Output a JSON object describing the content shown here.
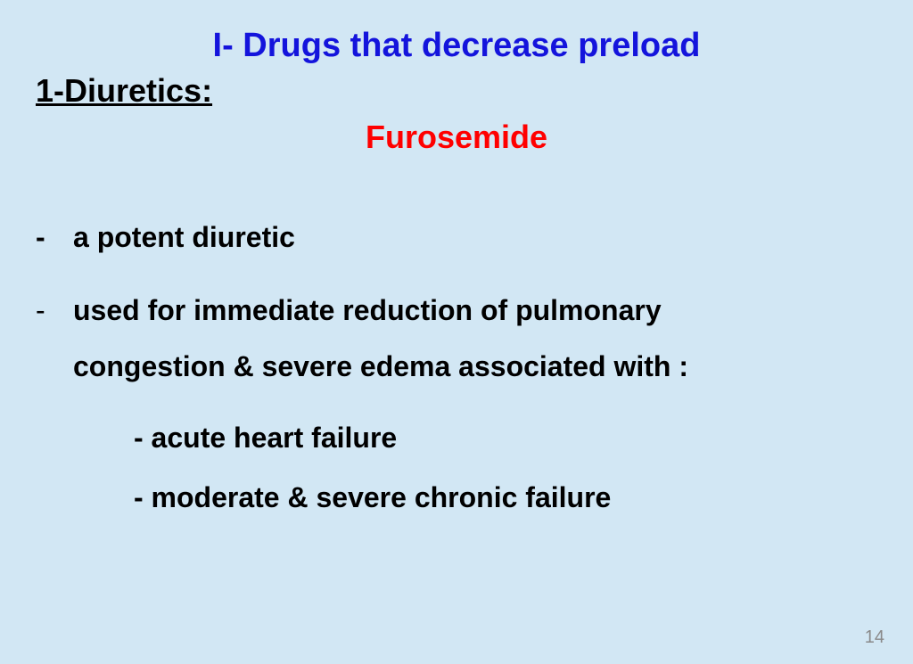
{
  "colors": {
    "background": "#d2e7f4",
    "title": "#1414dc",
    "section": "#000000",
    "drug": "#ff0000",
    "body": "#000000",
    "pagenum": "#8a8a8a"
  },
  "fonts": {
    "title_size": 38,
    "section_size": 36,
    "drug_size": 36,
    "body_size": 32,
    "pagenum_size": 20
  },
  "title": "I- Drugs  that  decrease preload",
  "section": "1-Diuretics:",
  "drug": "Furosemide",
  "bullets": {
    "b1": "a  potent diuretic",
    "b2_line1": "used for immediate reduction of pulmonary",
    "b2_line2": "congestion & severe edema associated with :",
    "sub1": "- acute heart failure",
    "sub2": "- moderate & severe chronic failure"
  },
  "pagenum": "14"
}
